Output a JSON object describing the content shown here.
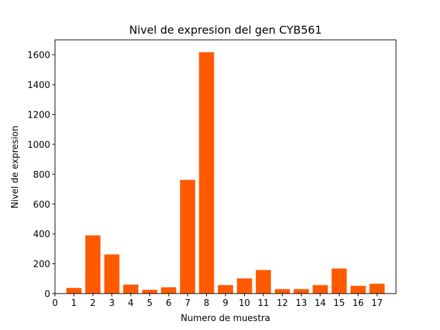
{
  "chart_data": {
    "type": "bar",
    "title": "Nivel de expresion del gen CYB561",
    "xlabel": "Numero de muestra",
    "ylabel": "Nivel de expresion",
    "categories": [
      "1",
      "2",
      "3",
      "4",
      "5",
      "6",
      "7",
      "8",
      "9",
      "10",
      "11",
      "12",
      "13",
      "14",
      "15",
      "16",
      "17"
    ],
    "x": [
      1,
      2,
      3,
      4,
      5,
      6,
      7,
      8,
      9,
      10,
      11,
      12,
      13,
      14,
      15,
      16,
      17
    ],
    "values": [
      38,
      390,
      262,
      60,
      25,
      42,
      762,
      1617,
      57,
      102,
      158,
      30,
      30,
      57,
      168,
      52,
      66
    ],
    "xlim": [
      0,
      18
    ],
    "ylim": [
      0,
      1700
    ],
    "xticks": [
      "0",
      "1",
      "2",
      "3",
      "4",
      "5",
      "6",
      "7",
      "8",
      "9",
      "10",
      "11",
      "12",
      "13",
      "14",
      "15",
      "16",
      "17"
    ],
    "yticks": [
      "0",
      "200",
      "400",
      "600",
      "800",
      "1000",
      "1200",
      "1400",
      "1600"
    ],
    "bar_color": "#ff5a00",
    "grid": false,
    "legend": false
  }
}
